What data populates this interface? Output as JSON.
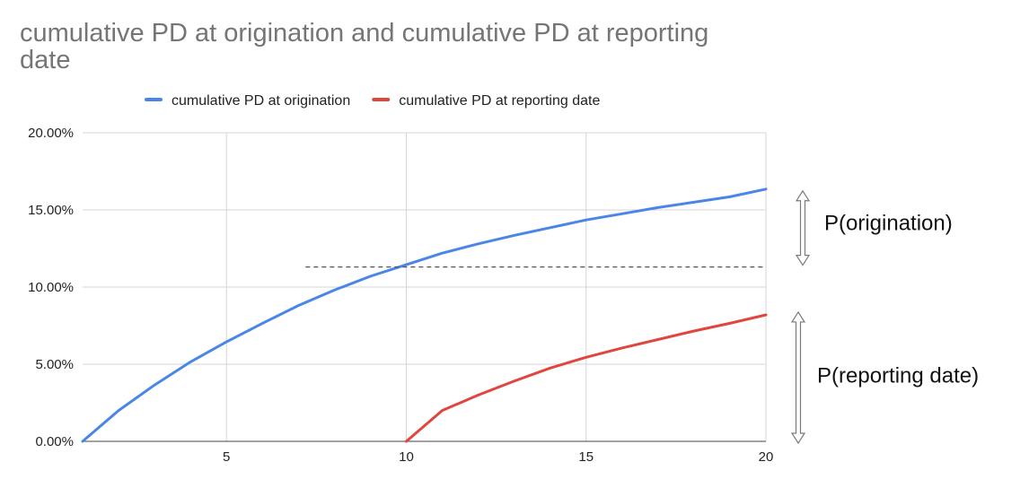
{
  "chart_data": {
    "type": "line",
    "title": "cumulative PD at origination and cumulative PD at reporting date",
    "xlabel": "",
    "ylabel": "",
    "xlim": [
      1,
      20
    ],
    "ylim": [
      0,
      0.2
    ],
    "x_ticks": [
      5,
      10,
      15,
      20
    ],
    "y_ticks": [
      0,
      0.05,
      0.1,
      0.15,
      0.2
    ],
    "y_tick_labels": [
      "0.00%",
      "5.00%",
      "10.00%",
      "15.00%",
      "20.00%"
    ],
    "grid": true,
    "legend_position": "top",
    "x": [
      1,
      2,
      3,
      4,
      5,
      6,
      7,
      8,
      9,
      10,
      11,
      12,
      13,
      14,
      15,
      16,
      17,
      18,
      19,
      20
    ],
    "series": [
      {
        "name": "cumulative PD at origination",
        "color": "#4a86e8",
        "values": [
          0.0,
          0.02,
          0.0365,
          0.0515,
          0.0645,
          0.0765,
          0.088,
          0.098,
          0.107,
          0.1145,
          0.122,
          0.128,
          0.1335,
          0.1385,
          0.1435,
          0.1475,
          0.1515,
          0.155,
          0.1585,
          0.1635
        ]
      },
      {
        "name": "cumulative PD at reporting date",
        "color": "#e0463e",
        "values": [
          null,
          null,
          null,
          null,
          null,
          null,
          null,
          null,
          null,
          0.0,
          0.02,
          0.03,
          0.039,
          0.0475,
          0.0545,
          0.0605,
          0.066,
          0.0715,
          0.0765,
          0.082
        ]
      }
    ],
    "annotations": {
      "reference_line": {
        "x_start": 7.2,
        "x_end": 20,
        "y": 0.113,
        "style": "dashed"
      },
      "labels": [
        "P(origination)",
        "P(reporting date)"
      ]
    }
  }
}
